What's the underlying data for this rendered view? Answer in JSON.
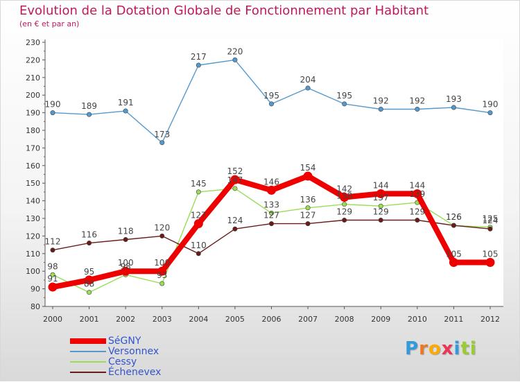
{
  "chart_data": {
    "type": "line",
    "title": "Evolution de la Dotation Globale de Fonctionnement par Habitant",
    "subtitle": "(en € et par an)",
    "xlabel": "",
    "ylabel": "",
    "ylim": [
      80,
      230
    ],
    "ytick_step": 10,
    "grid": false,
    "categories": [
      "2000",
      "2001",
      "2002",
      "2003",
      "2004",
      "2005",
      "2006",
      "2007",
      "2008",
      "2009",
      "2010",
      "2011",
      "2012"
    ],
    "series": [
      {
        "name": "SéGNY",
        "color": "#ee0000",
        "bold": true,
        "values": [
          91,
          95,
          100,
          100,
          127,
          152,
          146,
          154,
          142,
          144,
          144,
          105,
          105
        ]
      },
      {
        "name": "Versonnex",
        "color": "#5599cc",
        "bold": false,
        "values": [
          190,
          189,
          191,
          173,
          217,
          220,
          195,
          204,
          195,
          192,
          192,
          193,
          190
        ]
      },
      {
        "name": "Cessy",
        "color": "#99dd55",
        "bold": false,
        "values": [
          98,
          88,
          98,
          93,
          145,
          147,
          133,
          136,
          138,
          137,
          139,
          126,
          125
        ]
      },
      {
        "name": "Échenevex",
        "color": "#6b1a1a",
        "bold": false,
        "values": [
          112,
          116,
          118,
          120,
          110,
          124,
          127,
          127,
          129,
          129,
          129,
          126,
          124
        ]
      }
    ]
  },
  "legend": [
    {
      "label": "SéGNY",
      "color": "#ee0000",
      "bold": true
    },
    {
      "label": "Versonnex",
      "color": "#5599cc",
      "bold": false
    },
    {
      "label": "Cessy",
      "color": "#99dd55",
      "bold": false
    },
    {
      "label": "Échenevex",
      "color": "#6b1a1a",
      "bold": false
    }
  ],
  "brand": {
    "letters": [
      "P",
      "r",
      "o",
      "x",
      "i",
      "t",
      "i"
    ],
    "colors": [
      "#3399dd",
      "#ee7722",
      "#ffaa00",
      "#ee3355",
      "#3399dd",
      "#99cc33",
      "#99cc33"
    ]
  }
}
